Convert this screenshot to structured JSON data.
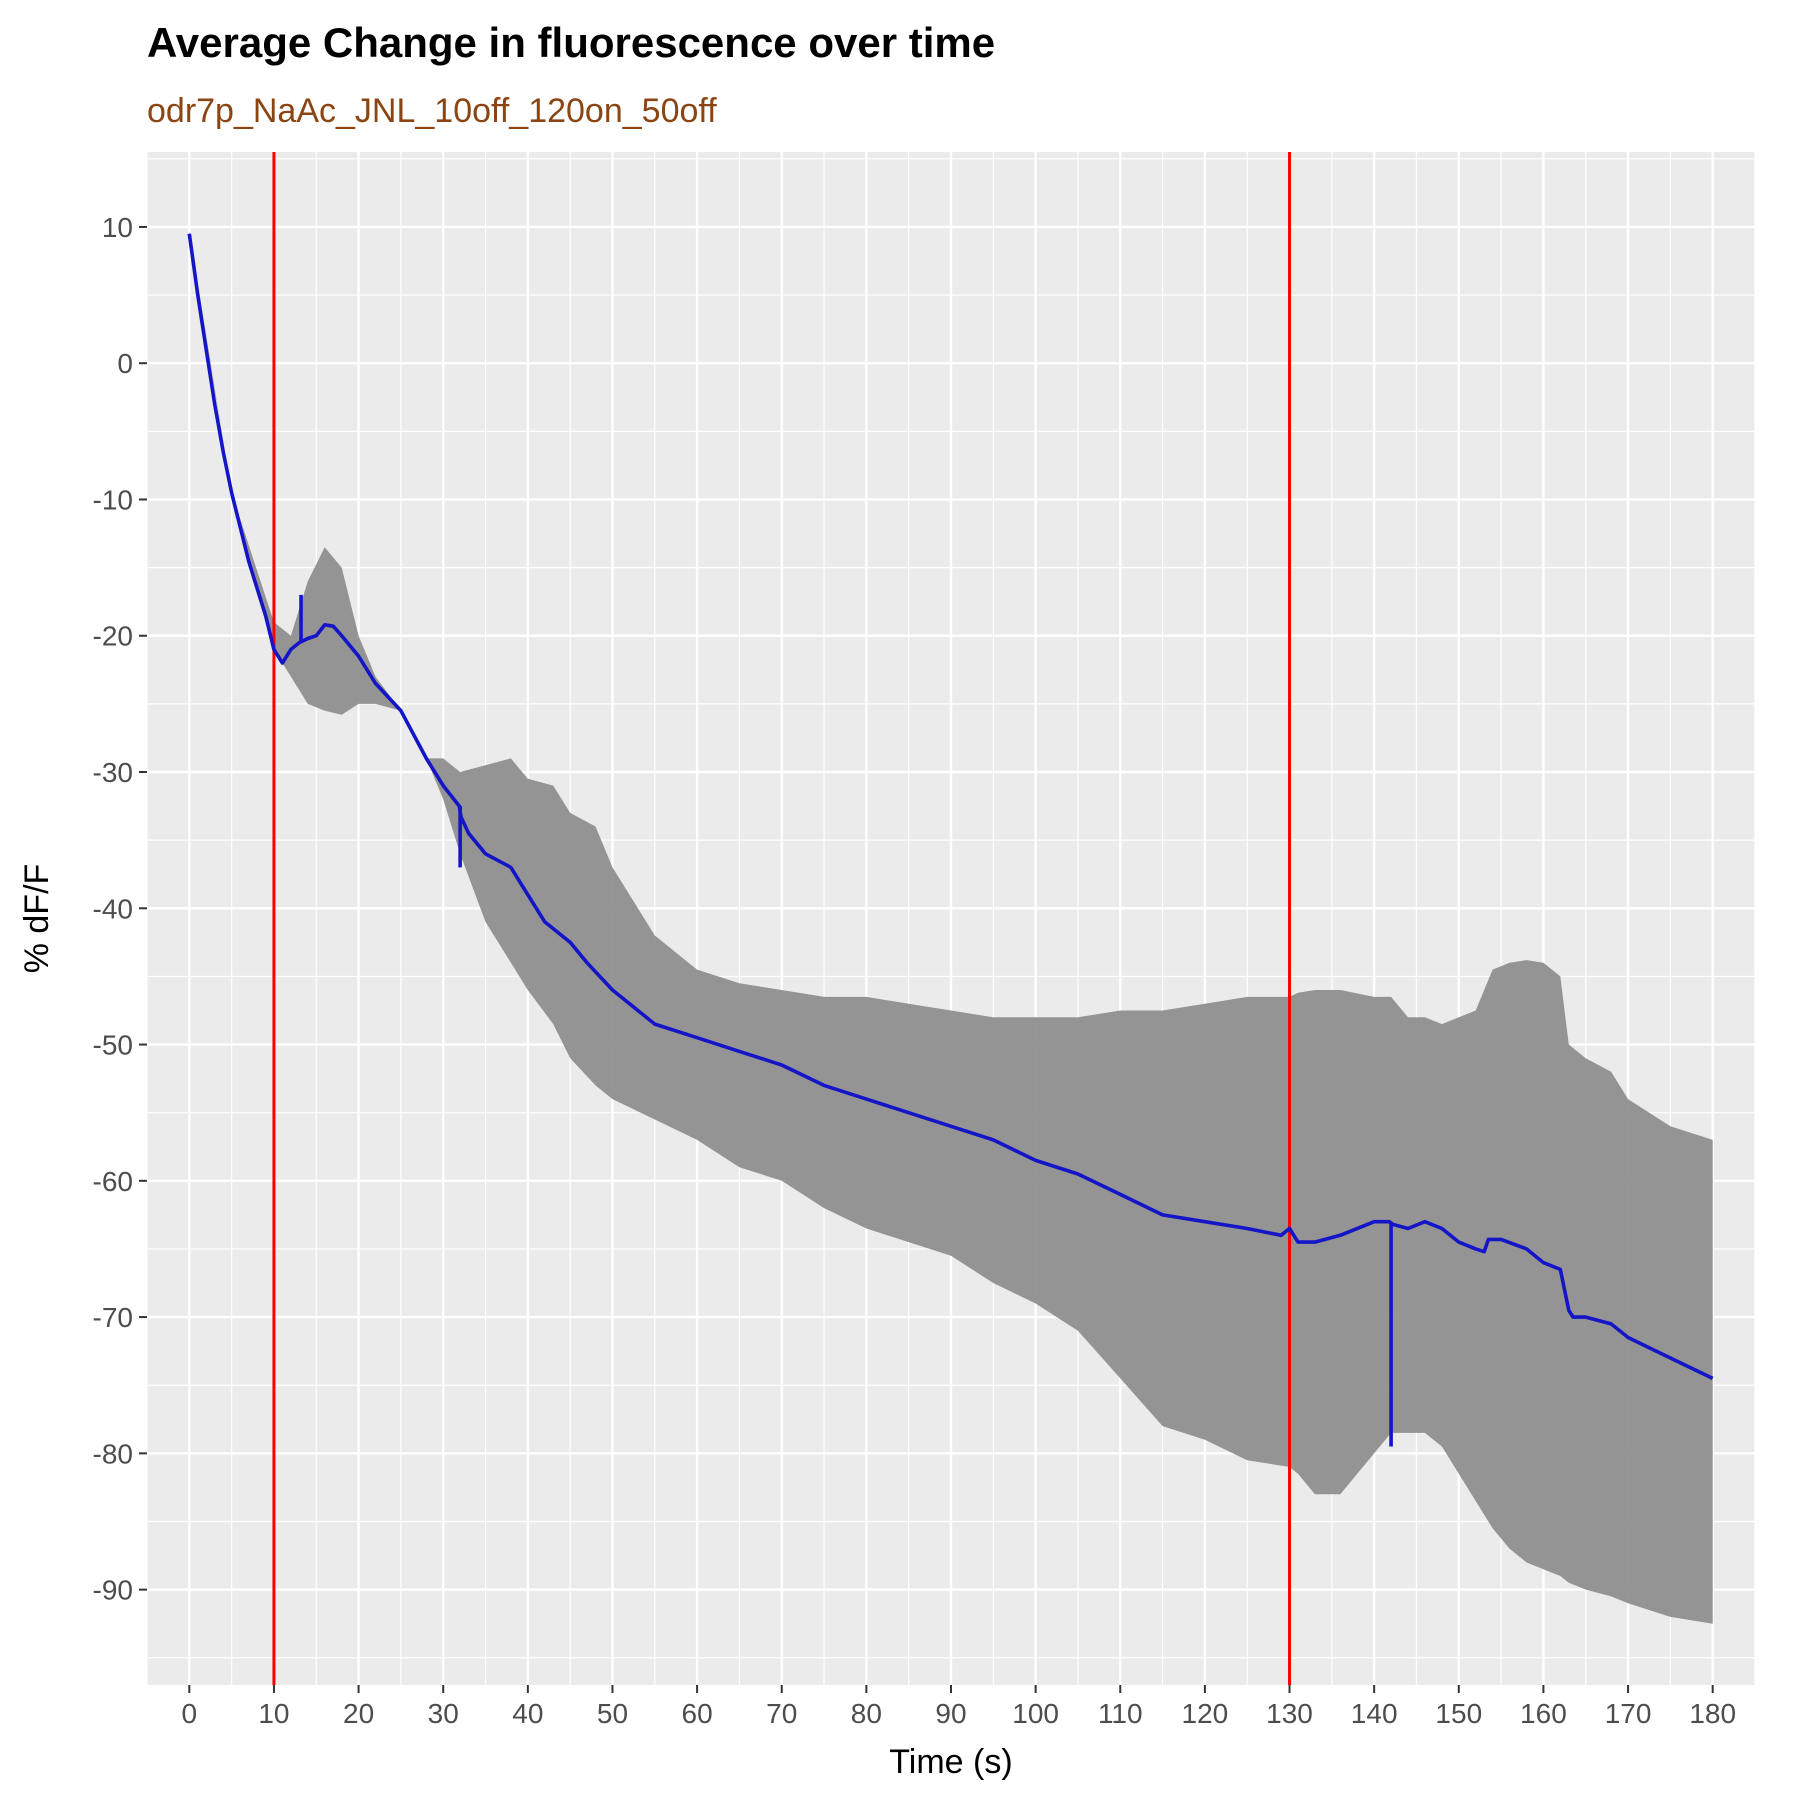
{
  "chart_data": {
    "type": "line",
    "title": "Average Change in fluorescence over time",
    "subtitle": "odr7p_NaAc_JNL_10off_120on_50off",
    "xlabel": "Time (s)",
    "ylabel": "% dF/F",
    "xlim": [
      -5,
      185
    ],
    "ylim": [
      -97,
      15.5
    ],
    "x_ticks": [
      0,
      10,
      20,
      30,
      40,
      50,
      60,
      70,
      80,
      90,
      100,
      110,
      120,
      130,
      140,
      150,
      160,
      170,
      180
    ],
    "y_ticks": [
      10,
      0,
      -10,
      -20,
      -30,
      -40,
      -50,
      -60,
      -70,
      -80,
      -90
    ],
    "grid": true,
    "legend": "none",
    "colors": {
      "panel": "#ebebeb",
      "grid": "#ffffff",
      "mean_line": "#1515c8",
      "ribbon": "#8c8c8c",
      "vline": "#ff0000",
      "subtitle": "#8b4513"
    },
    "vlines": [
      10,
      130
    ],
    "series": [
      {
        "x": [
          0,
          1,
          2,
          3,
          4,
          5,
          6,
          7,
          8,
          9,
          10,
          11,
          12,
          13,
          14,
          15,
          16,
          17,
          18,
          20,
          22,
          25,
          28,
          30,
          31.9,
          32.1,
          33,
          35,
          38,
          40,
          42,
          45,
          47,
          50,
          55,
          60,
          65,
          70,
          75,
          80,
          85,
          90,
          95,
          100,
          105,
          110,
          115,
          120,
          125,
          129,
          130,
          131,
          133,
          136,
          140,
          141.8,
          142.2,
          144,
          146,
          148,
          150,
          152,
          153,
          153.5,
          155,
          158,
          160,
          162,
          163,
          163.5,
          165,
          168,
          170,
          175,
          180
        ],
        "y": [
          9.5,
          5,
          1,
          -3,
          -6.5,
          -9.5,
          -12,
          -14.5,
          -16.5,
          -18.5,
          -21,
          -22,
          -21,
          -20.5,
          -20.2,
          -20,
          -19.2,
          -19.3,
          -20,
          -21.5,
          -23.5,
          -25.5,
          -29,
          -31,
          -32.5,
          -33.3,
          -34.5,
          -36,
          -37,
          -39,
          -41,
          -42.5,
          -44,
          -46,
          -48.5,
          -49.5,
          -50.5,
          -51.5,
          -53,
          -54,
          -55,
          -56,
          -57,
          -58.5,
          -59.5,
          -61,
          -62.5,
          -63,
          -63.5,
          -64,
          -63.5,
          -64.5,
          -64.5,
          -64,
          -63,
          -63,
          -63.2,
          -63.5,
          -63,
          -63.5,
          -64.5,
          -65,
          -65.2,
          -64.3,
          -64.3,
          -65,
          -66,
          -66.5,
          -69.5,
          -70,
          -70,
          -70.5,
          -71.5,
          -73,
          -74.5
        ]
      }
    ],
    "ribbon": {
      "x": [
        0,
        5,
        10,
        12,
        14,
        16,
        18,
        20,
        22,
        25,
        28,
        30,
        32,
        35,
        38,
        40,
        43,
        45,
        48,
        50,
        55,
        60,
        65,
        70,
        75,
        80,
        85,
        90,
        95,
        100,
        105,
        110,
        115,
        120,
        125,
        130,
        131,
        133,
        136,
        140,
        142,
        144,
        146,
        148,
        150,
        152,
        153,
        154,
        156,
        158,
        160,
        162,
        163,
        165,
        168,
        170,
        175,
        180
      ],
      "upper": [
        9.7,
        -9.5,
        -19,
        -20,
        -16,
        -13.5,
        -15,
        -20,
        -23,
        -25.5,
        -29,
        -29,
        -30,
        -29.5,
        -29,
        -30.5,
        -31,
        -33,
        -34,
        -37,
        -42,
        -44.5,
        -45.5,
        -46,
        -46.5,
        -46.5,
        -47,
        -47.5,
        -48,
        -48,
        -48,
        -47.5,
        -47.5,
        -47,
        -46.5,
        -46.5,
        -46.2,
        -46,
        -46,
        -46.5,
        -46.5,
        -48,
        -48,
        -48.5,
        -48,
        -47.5,
        -46,
        -44.5,
        -44,
        -43.8,
        -44,
        -45,
        -50,
        -51,
        -52,
        -54,
        -56,
        -57
      ],
      "lower": [
        9.3,
        -9.5,
        -21,
        -23,
        -25,
        -25.5,
        -25.8,
        -25,
        -25,
        -25.5,
        -29,
        -32,
        -36,
        -41,
        -44,
        -46,
        -48.5,
        -51,
        -53,
        -54,
        -55.5,
        -57,
        -59,
        -60,
        -62,
        -63.5,
        -64.5,
        -65.5,
        -67.5,
        -69,
        -71,
        -74.5,
        -78,
        -79,
        -80.5,
        -81,
        -81.5,
        -83,
        -83,
        -80,
        -78.5,
        -78.5,
        -78.5,
        -79.5,
        -81.5,
        -83.5,
        -84.5,
        -85.5,
        -87,
        -88,
        -88.5,
        -89,
        -89.5,
        -90,
        -90.5,
        -91,
        -92,
        -92.5
      ]
    },
    "spikes": [
      {
        "x": 13.2,
        "y_from": -20.5,
        "y_to": -17
      },
      {
        "x": 32.0,
        "y_from": -32.5,
        "y_to": -37
      },
      {
        "x": 142.0,
        "y_from": -63,
        "y_to": -79.5
      }
    ]
  }
}
